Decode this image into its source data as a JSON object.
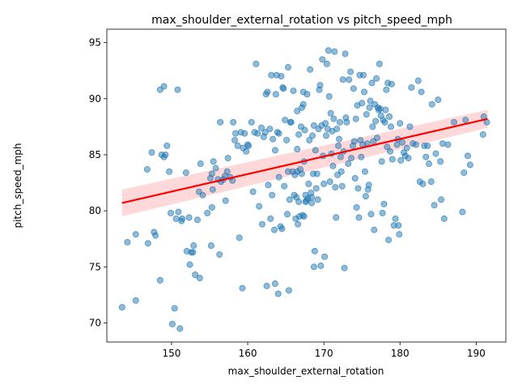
{
  "chart_data": {
    "type": "scatter",
    "title": "max_shoulder_external_rotation vs pitch_speed_mph",
    "xlabel": "max_shoulder_external_rotation",
    "ylabel": "pitch_speed_mph",
    "xlim": [
      141.5,
      193.9
    ],
    "ylim": [
      68.3,
      96.2
    ],
    "xticks": [
      150,
      160,
      170,
      180,
      190
    ],
    "yticks": [
      70,
      75,
      80,
      85,
      90,
      95
    ],
    "grid": false,
    "legend": "none",
    "colors": {
      "points": "#1f77b4",
      "regression": "#ff0000",
      "band": "#ff0000"
    },
    "regression": {
      "x": [
        143.5,
        191.5
      ],
      "y": [
        80.7,
        88.2
      ],
      "ci_lower": [
        79.5,
        87.4
      ],
      "ci_upper": [
        81.9,
        89.0
      ]
    },
    "points": [
      [
        143.5,
        71.4
      ],
      [
        144.2,
        77.2
      ],
      [
        145.3,
        72.0
      ],
      [
        145.3,
        77.9
      ],
      [
        146.8,
        83.7
      ],
      [
        146.9,
        77.1
      ],
      [
        147.4,
        85.2
      ],
      [
        147.7,
        78.1
      ],
      [
        147.9,
        77.8
      ],
      [
        148.5,
        73.8
      ],
      [
        148.5,
        90.8
      ],
      [
        148.7,
        85.0
      ],
      [
        149.0,
        91.1
      ],
      [
        149.0,
        84.8
      ],
      [
        149.2,
        85.0
      ],
      [
        149.4,
        85.8
      ],
      [
        149.7,
        83.5
      ],
      [
        149.9,
        79.8
      ],
      [
        150.1,
        69.9
      ],
      [
        150.4,
        71.3
      ],
      [
        150.6,
        79.3
      ],
      [
        150.8,
        90.8
      ],
      [
        150.9,
        79.9
      ],
      [
        151.1,
        69.5
      ],
      [
        151.3,
        79.1
      ],
      [
        151.4,
        79.3
      ],
      [
        151.9,
        83.4
      ],
      [
        152.0,
        76.4
      ],
      [
        152.3,
        79.4
      ],
      [
        152.4,
        75.2
      ],
      [
        152.6,
        76.3
      ],
      [
        152.8,
        76.3
      ],
      [
        152.9,
        76.9
      ],
      [
        153.1,
        74.3
      ],
      [
        153.4,
        79.2
      ],
      [
        153.6,
        81.7
      ],
      [
        153.7,
        74.0
      ],
      [
        153.8,
        84.2
      ],
      [
        154.1,
        81.4
      ],
      [
        154.7,
        79.8
      ],
      [
        155.1,
        82.9
      ],
      [
        155.2,
        76.9
      ],
      [
        155.3,
        80.3
      ],
      [
        155.3,
        83.3
      ],
      [
        155.4,
        81.9
      ],
      [
        155.5,
        84.4
      ],
      [
        155.8,
        83.8
      ],
      [
        156.1,
        82.8
      ],
      [
        156.3,
        76.1
      ],
      [
        156.4,
        87.9
      ],
      [
        156.5,
        82.6
      ],
      [
        156.8,
        82.8
      ],
      [
        157.0,
        83.1
      ],
      [
        157.1,
        80.9
      ],
      [
        157.3,
        83.5
      ],
      [
        157.4,
        84.7
      ],
      [
        157.7,
        83.0
      ],
      [
        158.0,
        82.7
      ],
      [
        158.1,
        87.9
      ],
      [
        158.3,
        86.3
      ],
      [
        158.4,
        86.9
      ],
      [
        158.7,
        85.8
      ],
      [
        158.9,
        77.6
      ],
      [
        159.1,
        87.0
      ],
      [
        159.3,
        73.1
      ],
      [
        159.4,
        85.6
      ],
      [
        159.6,
        86.9
      ],
      [
        159.8,
        85.3
      ],
      [
        160.0,
        85.9
      ],
      [
        160.1,
        85.8
      ],
      [
        160.5,
        87.9
      ],
      [
        160.7,
        81.7
      ],
      [
        160.9,
        87.0
      ],
      [
        161.1,
        93.1
      ],
      [
        161.3,
        86.9
      ],
      [
        161.5,
        80.4
      ],
      [
        161.8,
        87.4
      ],
      [
        161.9,
        78.8
      ],
      [
        162.1,
        86.6
      ],
      [
        162.3,
        87.0
      ],
      [
        162.4,
        90.4
      ],
      [
        162.5,
        73.3
      ],
      [
        162.6,
        90.6
      ],
      [
        162.7,
        82.3
      ],
      [
        162.9,
        87.3
      ],
      [
        163.0,
        79.3
      ],
      [
        163.1,
        92.1
      ],
      [
        163.2,
        81.4
      ],
      [
        163.3,
        86.4
      ],
      [
        163.5,
        78.3
      ],
      [
        163.6,
        73.5
      ],
      [
        163.6,
        85.4
      ],
      [
        163.7,
        90.4
      ],
      [
        163.8,
        92.1
      ],
      [
        163.9,
        87.0
      ],
      [
        164.0,
        72.6
      ],
      [
        164.1,
        86.9
      ],
      [
        164.1,
        83.0
      ],
      [
        164.3,
        78.6
      ],
      [
        164.4,
        92.0
      ],
      [
        164.5,
        78.4
      ],
      [
        164.6,
        91.0
      ],
      [
        164.7,
        90.9
      ],
      [
        164.8,
        82.2
      ],
      [
        164.9,
        88.1
      ],
      [
        165.1,
        86.3
      ],
      [
        165.2,
        79.7
      ],
      [
        165.3,
        83.5
      ],
      [
        165.3,
        92.8
      ],
      [
        165.4,
        72.9
      ],
      [
        165.5,
        81.0
      ],
      [
        165.6,
        87.9
      ],
      [
        165.7,
        87.9
      ],
      [
        165.9,
        83.5
      ],
      [
        166.0,
        90.7
      ],
      [
        166.1,
        81.4
      ],
      [
        166.2,
        83.2
      ],
      [
        166.3,
        79.3
      ],
      [
        166.4,
        81.2
      ],
      [
        166.5,
        83.5
      ],
      [
        166.5,
        85.5
      ],
      [
        166.5,
        88.9
      ],
      [
        166.6,
        78.8
      ],
      [
        166.7,
        86.8
      ],
      [
        166.7,
        80.8
      ],
      [
        166.8,
        79.5
      ],
      [
        166.9,
        83.7
      ],
      [
        167.0,
        87.5
      ],
      [
        167.1,
        89.2
      ],
      [
        167.1,
        83.3
      ],
      [
        167.2,
        79.6
      ],
      [
        167.3,
        89.5
      ],
      [
        167.3,
        90.6
      ],
      [
        167.4,
        79.5
      ],
      [
        167.4,
        84.4
      ],
      [
        167.5,
        87.2
      ],
      [
        167.6,
        81.4
      ],
      [
        167.6,
        80.8
      ],
      [
        167.7,
        80.9
      ],
      [
        167.8,
        90.4
      ],
      [
        167.9,
        81.1
      ],
      [
        168.0,
        82.4
      ],
      [
        168.1,
        86.3
      ],
      [
        168.2,
        92.6
      ],
      [
        168.3,
        81.6
      ],
      [
        168.4,
        81.2
      ],
      [
        168.4,
        80.7
      ],
      [
        168.5,
        86.7
      ],
      [
        168.6,
        83.3
      ],
      [
        168.7,
        87.6
      ],
      [
        168.7,
        75.0
      ],
      [
        168.8,
        76.4
      ],
      [
        168.9,
        85.4
      ],
      [
        169.0,
        82.0
      ],
      [
        169.1,
        83.3
      ],
      [
        169.2,
        81.0
      ],
      [
        169.3,
        87.3
      ],
      [
        169.4,
        90.8
      ],
      [
        169.5,
        91.2
      ],
      [
        169.6,
        75.1
      ],
      [
        169.7,
        87.6
      ],
      [
        169.8,
        93.5
      ],
      [
        169.9,
        84.9
      ],
      [
        170.0,
        82.4
      ],
      [
        170.1,
        75.9
      ],
      [
        170.2,
        87.8
      ],
      [
        170.3,
        86.7
      ],
      [
        170.4,
        93.1
      ],
      [
        170.5,
        87.3
      ],
      [
        170.6,
        94.3
      ],
      [
        170.7,
        90.2
      ],
      [
        170.8,
        82.6
      ],
      [
        170.9,
        88.7
      ],
      [
        171.0,
        85.1
      ],
      [
        171.1,
        87.1
      ],
      [
        171.2,
        84.0
      ],
      [
        171.3,
        88.2
      ],
      [
        171.4,
        94.2
      ],
      [
        171.5,
        82.1
      ],
      [
        171.6,
        79.4
      ],
      [
        171.7,
        87.3
      ],
      [
        171.8,
        83.2
      ],
      [
        171.9,
        85.8
      ],
      [
        172.0,
        86.4
      ],
      [
        172.1,
        87.9
      ],
      [
        172.2,
        84.8
      ],
      [
        172.3,
        83.5
      ],
      [
        172.4,
        82.2
      ],
      [
        172.5,
        91.7
      ],
      [
        172.6,
        85.3
      ],
      [
        172.7,
        74.9
      ],
      [
        172.8,
        94.0
      ],
      [
        172.9,
        88.3
      ],
      [
        173.0,
        87.9
      ],
      [
        173.2,
        84.2
      ],
      [
        173.3,
        91.7
      ],
      [
        173.5,
        92.4
      ],
      [
        173.6,
        84.7
      ],
      [
        173.8,
        85.8
      ],
      [
        173.9,
        90.9
      ],
      [
        174.0,
        86.2
      ],
      [
        174.1,
        82.9
      ],
      [
        174.2,
        88.2
      ],
      [
        174.3,
        80.3
      ],
      [
        174.4,
        89.4
      ],
      [
        174.5,
        82.0
      ],
      [
        174.6,
        79.4
      ],
      [
        174.7,
        92.1
      ],
      [
        174.8,
        86.3
      ],
      [
        174.9,
        84.8
      ],
      [
        175.0,
        89.6
      ],
      [
        175.1,
        85.9
      ],
      [
        175.2,
        92.1
      ],
      [
        175.3,
        90.6
      ],
      [
        175.4,
        83.5
      ],
      [
        175.5,
        81.3
      ],
      [
        175.6,
        88.6
      ],
      [
        175.7,
        86.0
      ],
      [
        175.8,
        81.9
      ],
      [
        175.9,
        82.3
      ],
      [
        176.0,
        89.2
      ],
      [
        176.1,
        89.8
      ],
      [
        176.2,
        79.7
      ],
      [
        176.3,
        91.4
      ],
      [
        176.4,
        87.5
      ],
      [
        176.5,
        86.2
      ],
      [
        176.6,
        78.3
      ],
      [
        176.7,
        89.5
      ],
      [
        176.8,
        88.0
      ],
      [
        176.9,
        91.8
      ],
      [
        177.0,
        86.5
      ],
      [
        177.1,
        89.2
      ],
      [
        177.2,
        89.0
      ],
      [
        177.3,
        93.1
      ],
      [
        177.4,
        89.1
      ],
      [
        177.5,
        88.5
      ],
      [
        177.6,
        84.4
      ],
      [
        177.7,
        79.8
      ],
      [
        177.8,
        88.1
      ],
      [
        177.9,
        80.6
      ],
      [
        178.0,
        87.9
      ],
      [
        178.1,
        89.0
      ],
      [
        178.2,
        90.8
      ],
      [
        178.3,
        85.7
      ],
      [
        178.4,
        91.4
      ],
      [
        178.5,
        77.4
      ],
      [
        178.6,
        88.4
      ],
      [
        178.7,
        85.3
      ],
      [
        178.8,
        87.5
      ],
      [
        178.9,
        91.3
      ],
      [
        179.0,
        84.6
      ],
      [
        179.2,
        78.7
      ],
      [
        179.4,
        79.3
      ],
      [
        179.6,
        85.9
      ],
      [
        179.7,
        86.4
      ],
      [
        179.8,
        78.7
      ],
      [
        179.9,
        77.9
      ],
      [
        180.0,
        87.8
      ],
      [
        180.1,
        84.5
      ],
      [
        180.3,
        86.1
      ],
      [
        180.5,
        85.2
      ],
      [
        180.7,
        84.9
      ],
      [
        180.9,
        85.6
      ],
      [
        181.1,
        84.7
      ],
      [
        181.3,
        87.5
      ],
      [
        181.5,
        91.0
      ],
      [
        181.7,
        86.0
      ],
      [
        182.1,
        85.9
      ],
      [
        182.4,
        91.6
      ],
      [
        182.6,
        82.6
      ],
      [
        182.8,
        90.6
      ],
      [
        183.0,
        82.4
      ],
      [
        183.2,
        85.8
      ],
      [
        183.4,
        84.8
      ],
      [
        183.6,
        85.8
      ],
      [
        183.8,
        84.2
      ],
      [
        184.1,
        82.6
      ],
      [
        184.2,
        89.5
      ],
      [
        184.5,
        80.5
      ],
      [
        184.7,
        85.1
      ],
      [
        185.0,
        89.9
      ],
      [
        185.3,
        84.4
      ],
      [
        185.4,
        81.0
      ],
      [
        185.6,
        86.0
      ],
      [
        185.8,
        79.3
      ],
      [
        186.3,
        85.9
      ],
      [
        187.1,
        87.9
      ],
      [
        188.2,
        79.9
      ],
      [
        188.4,
        83.4
      ],
      [
        188.6,
        88.1
      ],
      [
        188.9,
        84.9
      ],
      [
        189.2,
        84.1
      ],
      [
        190.9,
        86.8
      ],
      [
        191.0,
        88.4
      ],
      [
        191.4,
        87.9
      ]
    ]
  }
}
